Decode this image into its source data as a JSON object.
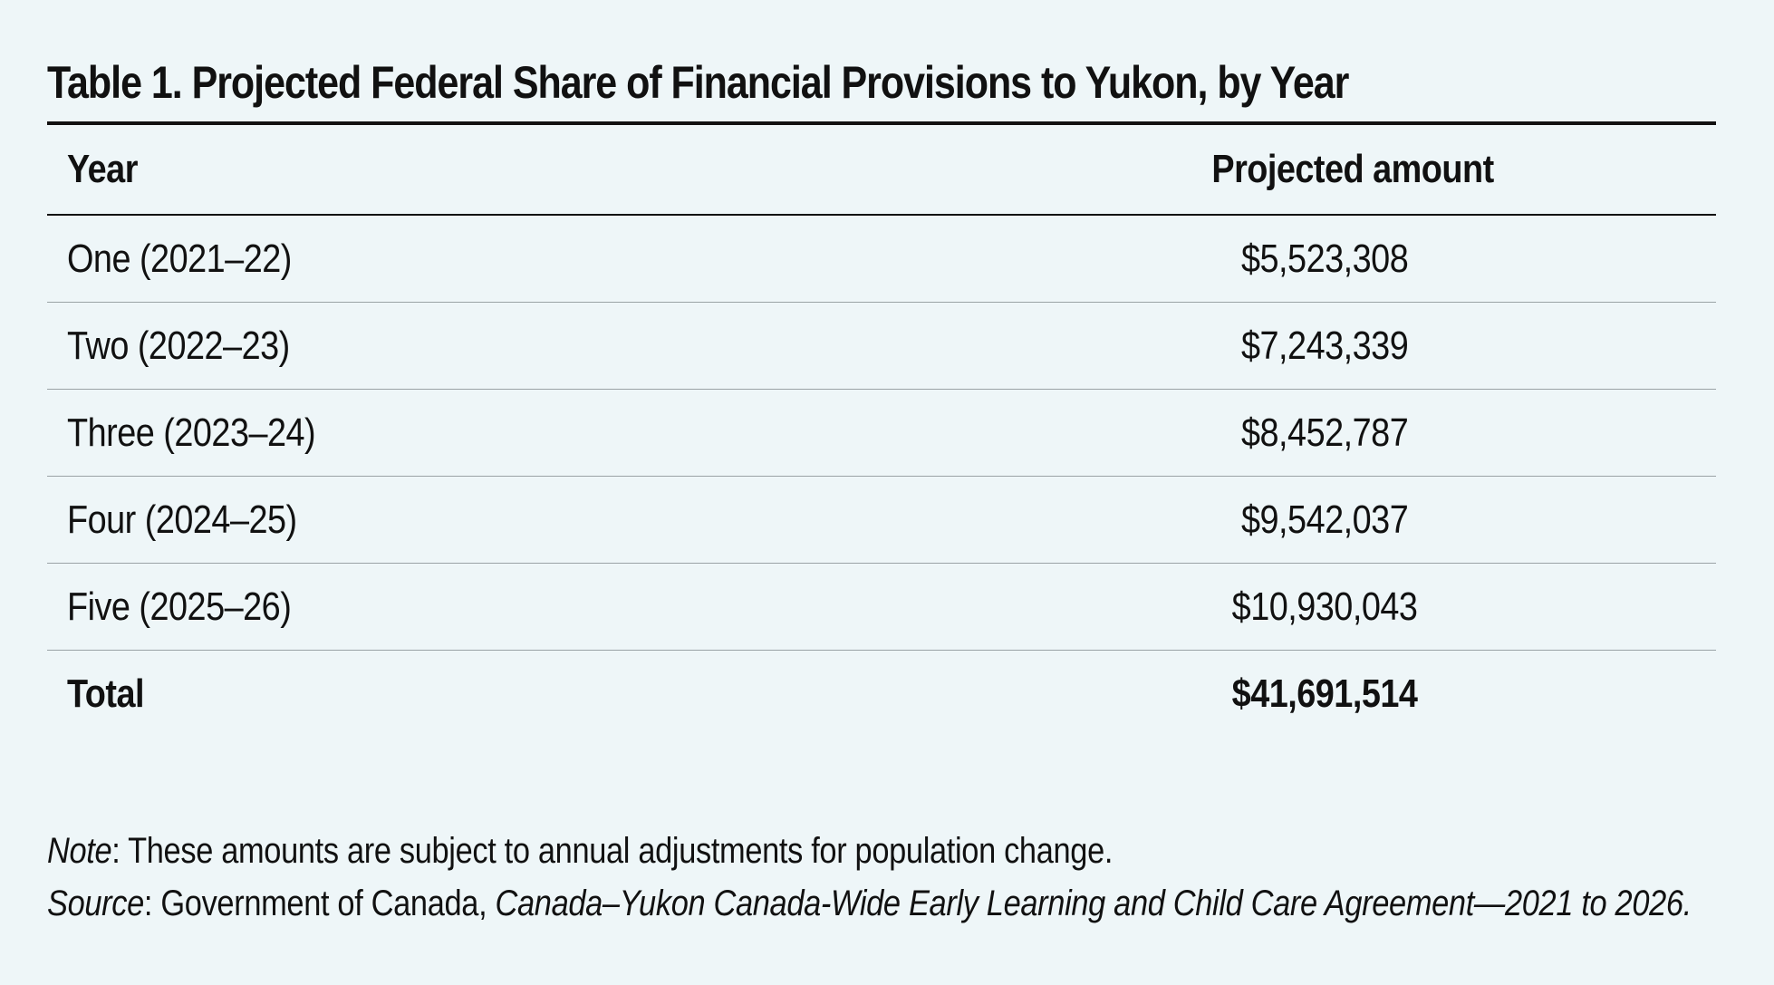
{
  "title": "Table 1. Projected Federal Share of Financial Provisions to Yukon, by Year",
  "headers": {
    "year": "Year",
    "amount": "Projected amount"
  },
  "rows": [
    {
      "year": "One (2021–22)",
      "amount": "$5,523,308"
    },
    {
      "year": "Two (2022–23)",
      "amount": "$7,243,339"
    },
    {
      "year": "Three (2023–24)",
      "amount": "$8,452,787"
    },
    {
      "year": "Four (2024–25)",
      "amount": "$9,542,037"
    },
    {
      "year": "Five (2025–26)",
      "amount": "$10,930,043"
    }
  ],
  "total": {
    "label": "Total",
    "amount": "$41,691,514"
  },
  "note": {
    "label": "Note",
    "text": ": These amounts are subject to annual adjustments for population change."
  },
  "source": {
    "label": "Source",
    "text": ": Government of Canada, ",
    "document_title": "Canada–Yukon Canada-Wide Early Learning and Child Care Agreement—2021 to 2026."
  }
}
